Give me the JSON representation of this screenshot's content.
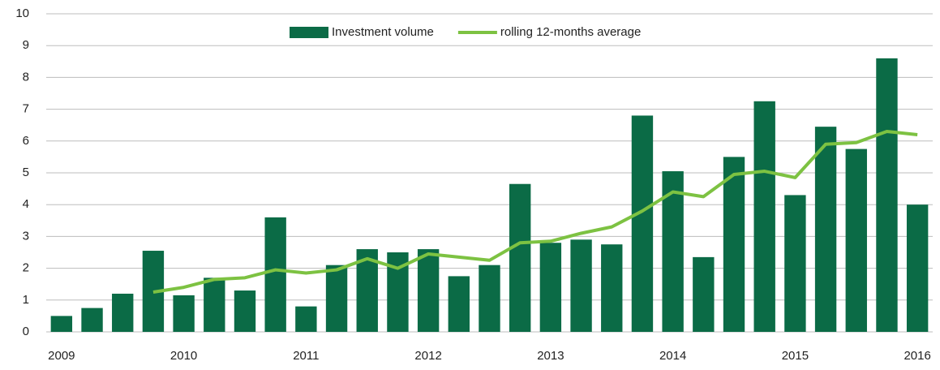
{
  "chart_data": {
    "type": "bar",
    "categories": [
      "2009",
      null,
      null,
      null,
      "2010",
      null,
      null,
      null,
      "2011",
      null,
      null,
      null,
      "2012",
      null,
      null,
      null,
      "2013",
      null,
      null,
      null,
      "2014",
      null,
      null,
      null,
      "2015",
      null,
      null,
      null,
      "2016"
    ],
    "series": [
      {
        "name": "Investment volume",
        "type": "bar",
        "color": "#0b6b46",
        "values": [
          0.5,
          0.75,
          1.2,
          2.55,
          1.15,
          1.7,
          1.3,
          3.6,
          0.8,
          2.1,
          2.6,
          2.5,
          2.6,
          1.75,
          2.1,
          4.65,
          2.8,
          2.9,
          2.75,
          6.8,
          5.05,
          2.35,
          5.5,
          7.25,
          4.3,
          6.45,
          5.75,
          8.6,
          4.0
        ]
      },
      {
        "name": "rolling 12-months average",
        "type": "line",
        "color": "#7dc242",
        "values": [
          null,
          null,
          null,
          1.25,
          1.4,
          1.65,
          1.7,
          1.95,
          1.85,
          1.95,
          2.3,
          2.0,
          2.45,
          2.35,
          2.25,
          2.8,
          2.85,
          3.1,
          3.3,
          3.8,
          4.4,
          4.25,
          4.95,
          5.05,
          4.85,
          5.9,
          5.95,
          6.3,
          6.2
        ]
      }
    ],
    "ylim": [
      0,
      10
    ],
    "yticks": [
      0,
      1,
      2,
      3,
      4,
      5,
      6,
      7,
      8,
      9,
      10
    ],
    "grid": true,
    "legend": "top"
  }
}
